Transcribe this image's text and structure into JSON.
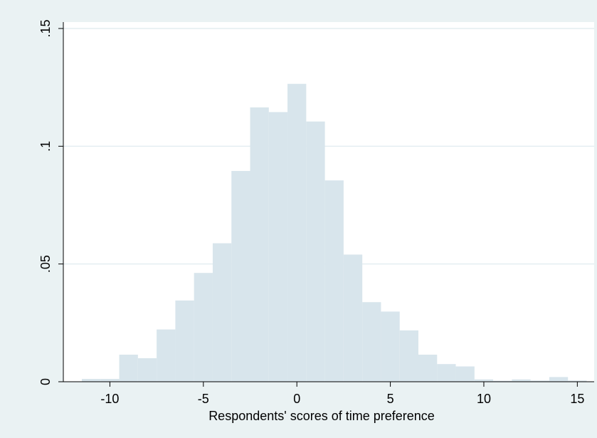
{
  "chart_data": {
    "type": "bar",
    "title": "",
    "xlabel": "Respondents' scores of time preference",
    "ylabel": "",
    "xlim": [
      -12.5,
      16
    ],
    "ylim": [
      0,
      0.15
    ],
    "grid": true,
    "x_ticks": [
      -10,
      -5,
      0,
      5,
      10,
      15
    ],
    "x_tick_labels": [
      "-10",
      "-5",
      "0",
      "5",
      "10",
      "15"
    ],
    "y_ticks": [
      0,
      0.05,
      0.1,
      0.15
    ],
    "y_tick_labels": [
      "0",
      ".05",
      ".1",
      ".15"
    ],
    "bin_width": 1,
    "bin_starts": [
      -11.5,
      -10.5,
      -9.5,
      -8.5,
      -7.5,
      -6.5,
      -5.5,
      -4.5,
      -3.5,
      -2.5,
      -1.5,
      -0.5,
      0.5,
      1.5,
      2.5,
      3.5,
      4.5,
      5.5,
      6.5,
      7.5,
      8.5,
      9.5,
      10.5,
      11.5,
      12.5,
      13.5,
      14.5
    ],
    "values": [
      0.0012,
      0.0012,
      0.0115,
      0.01,
      0.0222,
      0.0345,
      0.0462,
      0.0588,
      0.0895,
      0.1165,
      0.1145,
      0.1265,
      0.1105,
      0.0855,
      0.054,
      0.0338,
      0.0298,
      0.0218,
      0.0115,
      0.0075,
      0.0065,
      0.001,
      0.0004,
      0.001,
      0.0005,
      0.002,
      0.0005
    ],
    "colors": {
      "background": "#eaf2f3",
      "plot": "#ffffff",
      "bar": "#d8e5ec",
      "grid": "#e4eef1",
      "axis": "#000000"
    }
  }
}
